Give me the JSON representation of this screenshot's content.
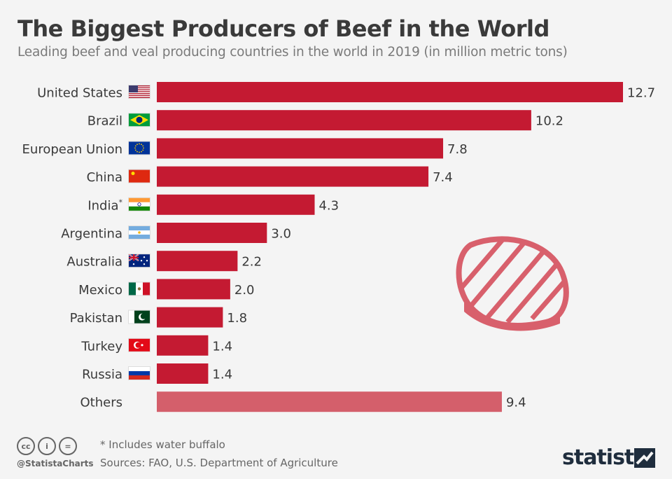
{
  "title": "The Biggest Producers of Beef in the World",
  "subtitle": "Leading beef and veal producing countries in the world in 2019 (in million metric tons)",
  "footnote": "* Includes water buffalo",
  "sources": "Sources: FAO, U.S. Department of Agriculture",
  "handle": "@StatistaCharts",
  "brand": "statista",
  "icons": [
    "cc-icon",
    "attribution-icon",
    "no-derivatives-icon",
    "steak-icon",
    "statista-logo-icon"
  ],
  "cc_labels": [
    "cc",
    "i",
    "="
  ],
  "colors": {
    "bar": "#c41a32",
    "others": "#d45f6b",
    "steak": "#d8606c"
  },
  "chart_data": {
    "type": "bar",
    "orientation": "horizontal",
    "categories": [
      "United States",
      "Brazil",
      "European Union",
      "China",
      "India",
      "Argentina",
      "Australia",
      "Mexico",
      "Pakistan",
      "Turkey",
      "Russia",
      "Others"
    ],
    "category_marks": [
      "",
      "",
      "",
      "",
      "*",
      "",
      "",
      "",
      "",
      "",
      "",
      ""
    ],
    "flags": [
      "us-flag-icon",
      "brazil-flag-icon",
      "eu-flag-icon",
      "china-flag-icon",
      "india-flag-icon",
      "argentina-flag-icon",
      "australia-flag-icon",
      "mexico-flag-icon",
      "pakistan-flag-icon",
      "turkey-flag-icon",
      "russia-flag-icon",
      ""
    ],
    "values": [
      12.7,
      10.2,
      7.8,
      7.4,
      4.3,
      3.0,
      2.2,
      2.0,
      1.8,
      1.4,
      1.4,
      9.4
    ],
    "value_labels": [
      "12.7",
      "10.2",
      "7.8",
      "7.4",
      "4.3",
      "3.0",
      "2.2",
      "2.0",
      "1.8",
      "1.4",
      "1.4",
      "9.4"
    ],
    "xlim": [
      0,
      12.7
    ],
    "grid": false,
    "legend": "none"
  }
}
